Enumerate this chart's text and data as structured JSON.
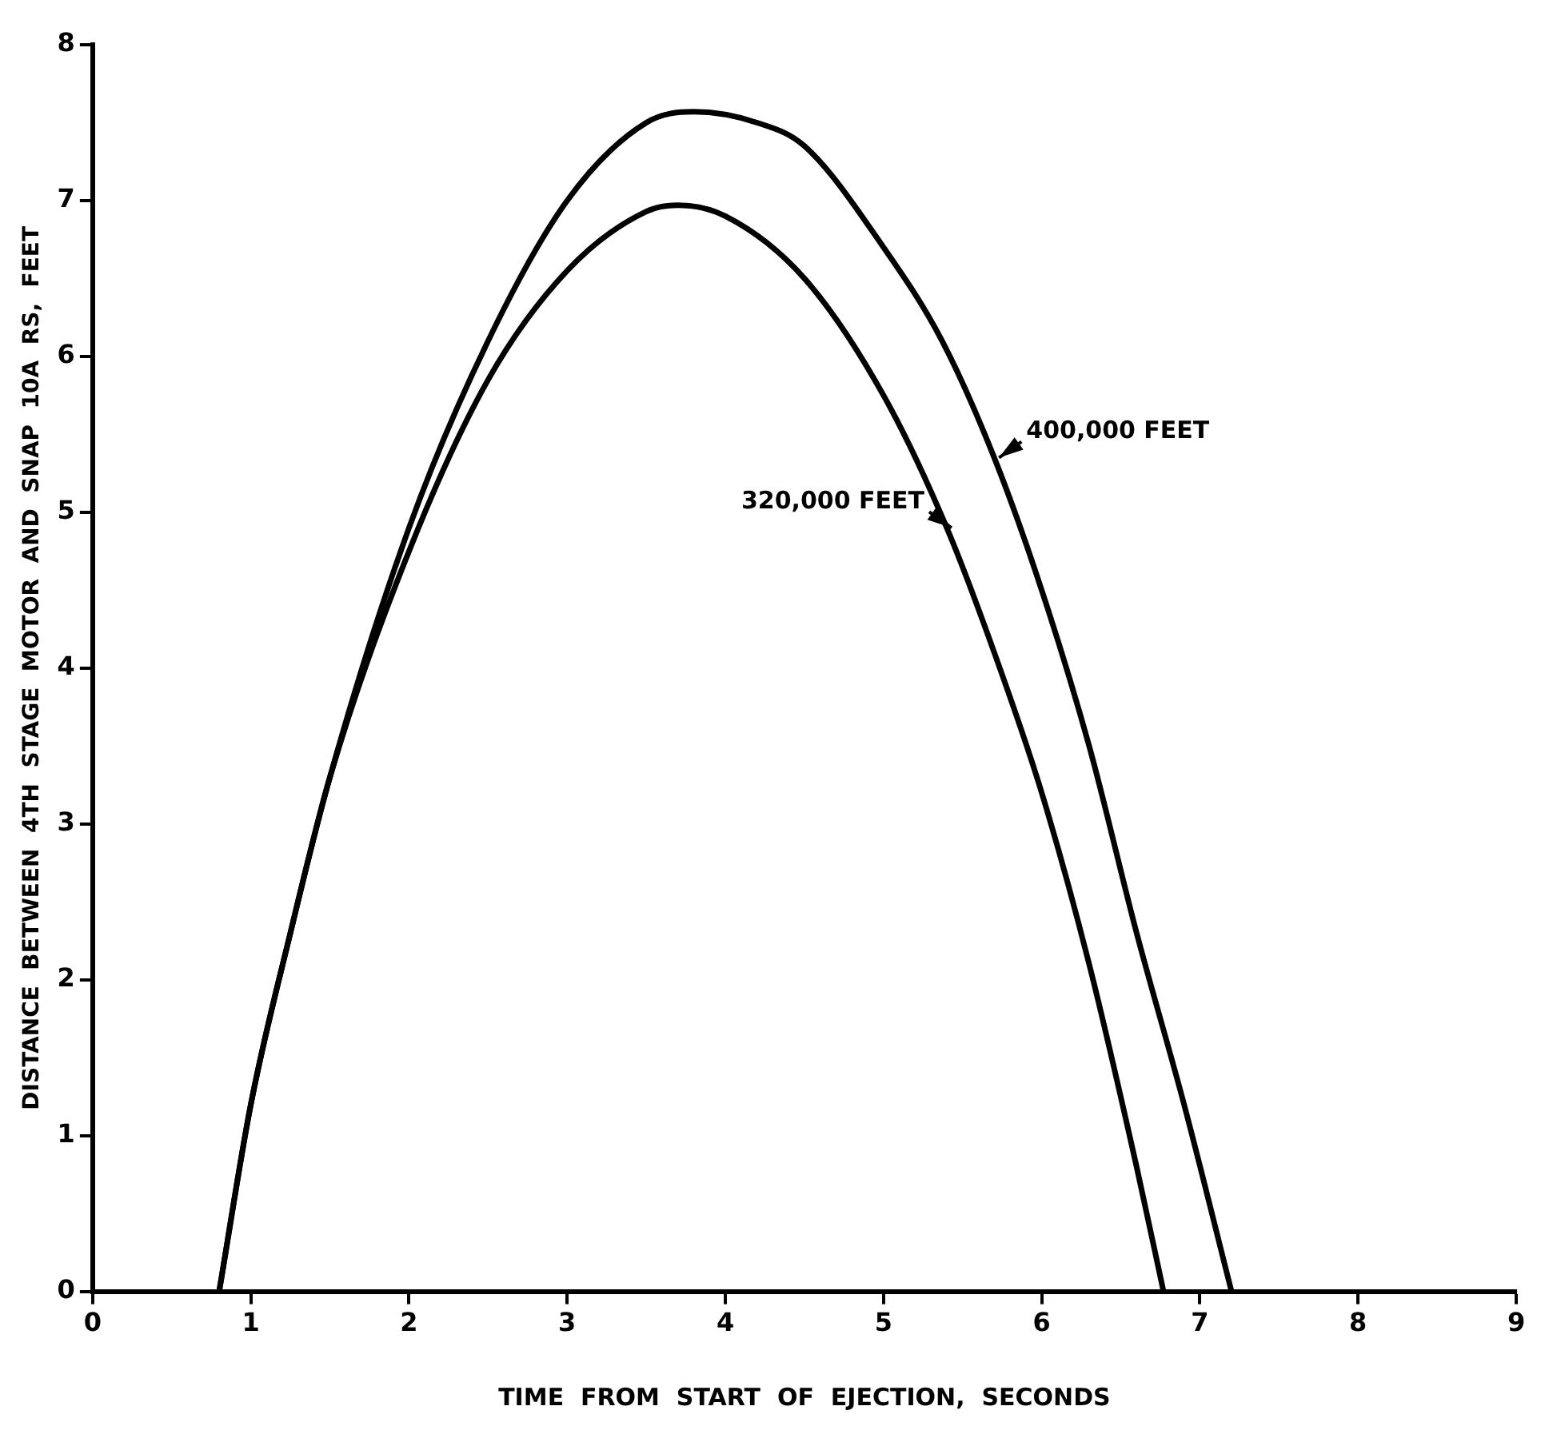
{
  "chart_data": {
    "type": "line",
    "xlabel": "TIME  FROM  START  OF  EJECTION,  SECONDS",
    "ylabel": "DISTANCE  BETWEEN  4TH  STAGE  MOTOR  AND  SNAP  10A  RS,  FEET",
    "xlim": [
      0,
      9
    ],
    "xticks": [
      0,
      1,
      2,
      3,
      4,
      5,
      6,
      7,
      8,
      9
    ],
    "ylim": [
      0,
      8
    ],
    "yticks": [
      0,
      1,
      2,
      3,
      4,
      5,
      6,
      7,
      8
    ],
    "grid": false,
    "legend": false,
    "marker": "none",
    "line_style": "solid",
    "series": [
      {
        "name": "400,000 FEET",
        "color": "#000000",
        "x": [
          0.8,
          1.0,
          1.25,
          1.5,
          2,
          2.5,
          3,
          3.5,
          3.8,
          4.2,
          4.5,
          5,
          5.37,
          5.7,
          6,
          6.3,
          6.6,
          6.9,
          7.2
        ],
        "values": [
          0,
          1.2,
          2.3,
          3.3,
          4.9,
          6.1,
          7.0,
          7.5,
          7.57,
          7.5,
          7.35,
          6.7,
          6.1,
          5.35,
          4.5,
          3.5,
          2.3,
          1.2,
          0
        ]
      },
      {
        "name": "320,000 FEET",
        "color": "#000000",
        "x": [
          0.8,
          1.0,
          1.25,
          1.5,
          2,
          2.5,
          3,
          3.5,
          3.7,
          4,
          4.5,
          5,
          5.4,
          5.7,
          6,
          6.3,
          6.6,
          6.77
        ],
        "values": [
          0,
          1.2,
          2.3,
          3.3,
          4.75,
          5.85,
          6.55,
          6.93,
          6.97,
          6.9,
          6.5,
          5.75,
          4.9,
          4.1,
          3.2,
          2.1,
          0.8,
          0
        ]
      }
    ]
  }
}
